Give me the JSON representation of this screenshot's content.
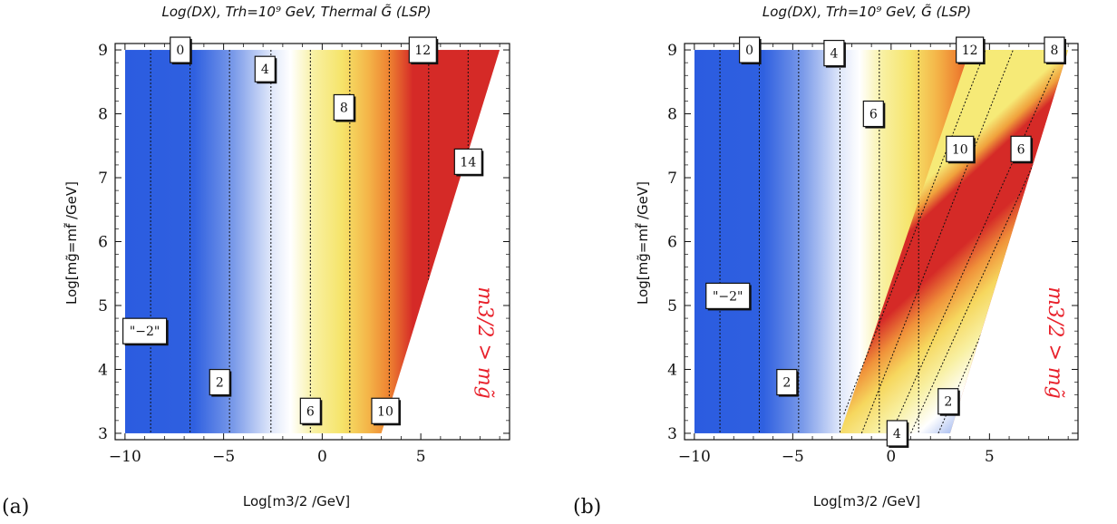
{
  "figure": {
    "panel_letters": [
      "(a)",
      "(b)"
    ],
    "xlabel": "Log[m3/2 /GeV]",
    "ylabel": "Log[mg̃=mf̃ /GeV]",
    "constraint_label": "m3/2 > mg̃",
    "colors": {
      "blue": "#2b5ce0",
      "white": "#ffffff",
      "yellow": "#f6ee7a",
      "orange": "#f08a2c",
      "red": "#d52a27",
      "constraint_text": "#e8202a"
    }
  },
  "chart_data": [
    {
      "type": "heatmap",
      "title": "Log(DX), Trh=10⁹ GeV, Thermal G̃ (LSP)",
      "xlabel": "Log[m3/2 /GeV]",
      "ylabel": "Log[mg̃=mf̃ /GeV]",
      "xlim": [
        -10.5,
        9.5
      ],
      "ylim": [
        2.9,
        9.1
      ],
      "xticks": [
        -10,
        -5,
        0,
        5
      ],
      "yticks": [
        3,
        4,
        5,
        6,
        7,
        8,
        9
      ],
      "region": "m3/2 < mg̃",
      "contour_labels": [
        {
          "text": "0",
          "x": -7.2,
          "y": 9.0
        },
        {
          "text": "4",
          "x": -2.9,
          "y": 8.7
        },
        {
          "text": "12",
          "x": 5.1,
          "y": 9.0
        },
        {
          "text": "8",
          "x": 1.1,
          "y": 8.1
        },
        {
          "text": "14",
          "x": 7.4,
          "y": 7.25
        },
        {
          "text": "\"−2\"",
          "x": -9.0,
          "y": 4.6
        },
        {
          "text": "2",
          "x": -5.2,
          "y": 3.8
        },
        {
          "text": "6",
          "x": -0.6,
          "y": 3.35
        },
        {
          "text": "10",
          "x": 3.2,
          "y": 3.35
        }
      ],
      "contours": [
        {
          "level": -2,
          "type": "vertical",
          "x": -8.7
        },
        {
          "level": 0,
          "type": "vertical",
          "x": -6.7
        },
        {
          "level": 2,
          "type": "vertical",
          "x": -4.7
        },
        {
          "level": 4,
          "type": "vertical",
          "x": -2.6
        },
        {
          "level": 6,
          "type": "vertical",
          "x": -0.6
        },
        {
          "level": 8,
          "type": "vertical",
          "x": 1.4
        },
        {
          "level": 10,
          "type": "vertical",
          "x": 3.4
        },
        {
          "level": 12,
          "type": "vertical",
          "x": 5.4
        },
        {
          "level": 14,
          "type": "vertical",
          "x": 7.4
        }
      ],
      "color_stops": [
        {
          "x": -10,
          "c": "#2b5ce0"
        },
        {
          "x": -6.5,
          "c": "#2f60e0"
        },
        {
          "x": -4.5,
          "c": "#7a9ae9"
        },
        {
          "x": -2.6,
          "c": "#dfe7fa"
        },
        {
          "x": -1.6,
          "c": "#ffffff"
        },
        {
          "x": -0.4,
          "c": "#f8f0a0"
        },
        {
          "x": 1.0,
          "c": "#f6e46a"
        },
        {
          "x": 2.3,
          "c": "#f4b649"
        },
        {
          "x": 3.4,
          "c": "#ee8231"
        },
        {
          "x": 4.6,
          "c": "#d52a27"
        },
        {
          "x": 9,
          "c": "#d52a27"
        }
      ]
    },
    {
      "type": "heatmap",
      "title": "Log(DX), Trh=10⁹ GeV, G̃ (LSP)",
      "xlabel": "Log[m3/2 /GeV]",
      "ylabel": "Log[mg̃=mf̃ /GeV]",
      "xlim": [
        -10.5,
        9.5
      ],
      "ylim": [
        2.9,
        9.1
      ],
      "xticks": [
        -10,
        -5,
        0,
        5
      ],
      "yticks": [
        3,
        4,
        5,
        6,
        7,
        8,
        9
      ],
      "region": "m3/2 < mg̃",
      "contour_labels": [
        {
          "text": "0",
          "x": -7.2,
          "y": 9.0
        },
        {
          "text": "4",
          "x": -2.9,
          "y": 8.95
        },
        {
          "text": "12",
          "x": 4.0,
          "y": 9.0
        },
        {
          "text": "8",
          "x": 8.3,
          "y": 9.0
        },
        {
          "text": "6",
          "x": -0.9,
          "y": 8.0
        },
        {
          "text": "10",
          "x": 3.5,
          "y": 7.45
        },
        {
          "text": "6",
          "x": 6.6,
          "y": 7.45
        },
        {
          "text": "\"−2\"",
          "x": -8.3,
          "y": 5.15
        },
        {
          "text": "2",
          "x": -5.3,
          "y": 3.8
        },
        {
          "text": "2",
          "x": 2.9,
          "y": 3.5
        },
        {
          "text": "4",
          "x": 0.3,
          "y": 3.0
        }
      ],
      "contours": [
        {
          "level": -2,
          "type": "vertical",
          "x": -8.7
        },
        {
          "level": 0,
          "type": "vertical",
          "x": -6.7
        },
        {
          "level": 2,
          "type": "vertical",
          "x": -4.7
        },
        {
          "level": 4,
          "type": "vertical",
          "x": -2.6
        },
        {
          "level": 6,
          "type": "vertical",
          "x": -0.6
        },
        {
          "level": 8,
          "type": "vertical",
          "x": 1.4
        },
        {
          "level": 12,
          "type": "line",
          "p1": [
            -2.4,
            3.3
          ],
          "p2": [
            4.8,
            9.0
          ]
        },
        {
          "level": 10,
          "type": "line",
          "p1": [
            -1.5,
            3.0
          ],
          "p2": [
            6.2,
            9.0
          ]
        },
        {
          "level": 8,
          "type": "line",
          "p1": [
            0.0,
            3.0
          ],
          "p2": [
            8.3,
            8.7
          ]
        },
        {
          "level": 6,
          "type": "line",
          "p1": [
            1.0,
            3.0
          ],
          "p2": [
            7.8,
            7.6
          ]
        },
        {
          "level": 4,
          "type": "line",
          "p1": [
            2.4,
            3.0
          ],
          "p2": [
            5.2,
            5.0
          ]
        }
      ],
      "red_band": {
        "left_edge": [
          [
            -2.6,
            3.0
          ],
          [
            4.0,
            9.0
          ]
        ],
        "right_edge": [
          [
            0.4,
            3.0
          ],
          [
            8.6,
            9.0
          ]
        ]
      }
    }
  ]
}
